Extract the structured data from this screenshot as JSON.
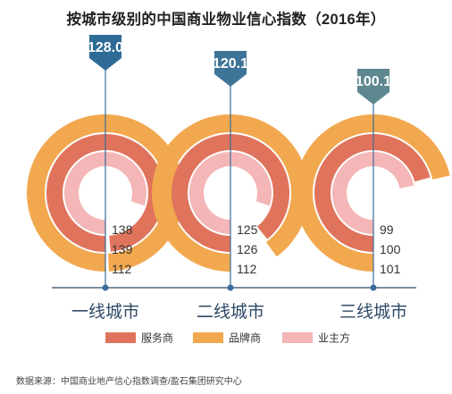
{
  "title": "按城市级别的中国商业物业信心指数（2016年）",
  "source": "数据来源：中国商业地产信心指数调查/盈石集团研究中心",
  "colors": {
    "brand": "#F2A84E",
    "service": "#E0735C",
    "owner": "#F4B6B6",
    "marker_1": "#2E6B96",
    "marker_2": "#3F7499",
    "marker_3": "#5E8790",
    "axis": "#2E4A66",
    "tick": "#3A6C9A",
    "text": "#333333"
  },
  "chart_data": {
    "type": "radial-bar",
    "max_value": 140,
    "categories": [
      "一线城市",
      "二线城市",
      "三线城市"
    ],
    "overall_index": [
      128.0,
      120.1,
      100.1
    ],
    "overall_labels": [
      "128.0",
      "120.1",
      "100.1"
    ],
    "series": [
      {
        "name": "服务商",
        "values": [
          138,
          125,
          99
        ]
      },
      {
        "name": "品牌商",
        "values": [
          139,
          126,
          100
        ]
      },
      {
        "name": "业主方",
        "values": [
          112,
          112,
          101
        ]
      }
    ],
    "ring_order_outer_to_inner": [
      "品牌商",
      "服务商",
      "业主方"
    ],
    "legend": [
      "服务商",
      "品牌商",
      "业主方"
    ],
    "legend_position": "bottom"
  }
}
